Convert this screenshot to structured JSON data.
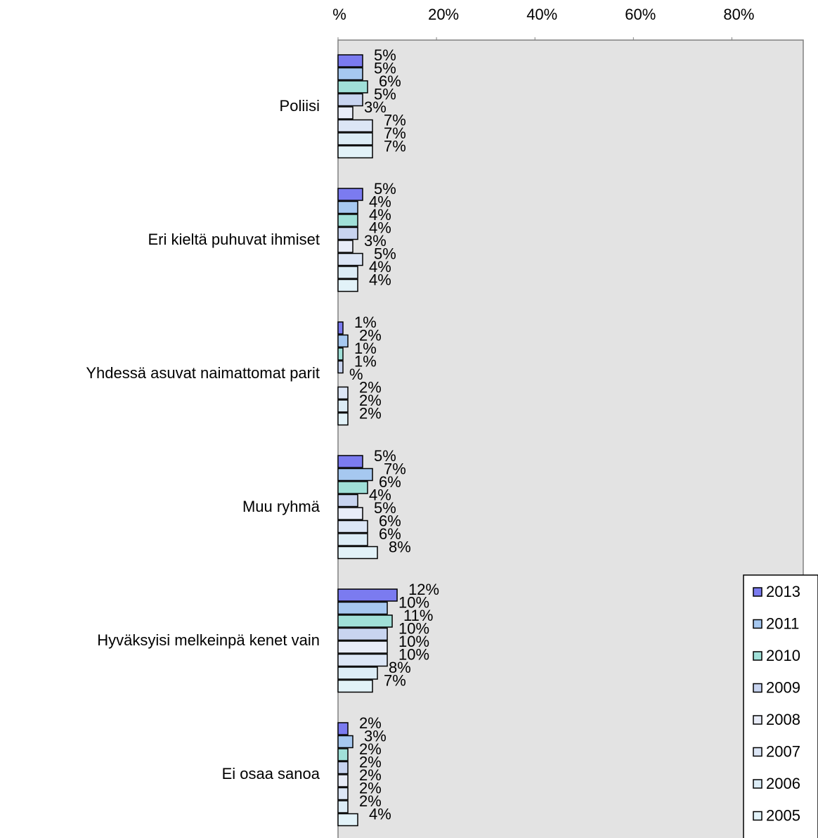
{
  "chart_data": {
    "type": "bar",
    "orientation": "horizontal",
    "categories": [
      "Poliisi",
      "Eri kieltä puhuvat ihmiset",
      "Yhdessä asuvat naimattomat parit",
      "Muu ryhmä",
      "Hyväksyisi melkeinpä kenet vain",
      "Ei osaa sanoa"
    ],
    "series": [
      {
        "name": "2013",
        "color": "#7b7bf0",
        "values": [
          5,
          5,
          1,
          5,
          12,
          2
        ],
        "value_labels": [
          "5%",
          "5%",
          "1%",
          "5%",
          "12%",
          "2%"
        ]
      },
      {
        "name": "2011",
        "color": "#a6c8f0",
        "values": [
          5,
          4,
          2,
          7,
          10,
          3
        ],
        "value_labels": [
          "5%",
          "4%",
          "2%",
          "7%",
          "10%",
          "3%"
        ]
      },
      {
        "name": "2010",
        "color": "#a0e0d8",
        "values": [
          6,
          4,
          1,
          6,
          11,
          2
        ],
        "value_labels": [
          "6%",
          "4%",
          "1%",
          "6%",
          "11%",
          "2%"
        ]
      },
      {
        "name": "2009",
        "color": "#c8d4f0",
        "values": [
          5,
          4,
          1,
          4,
          10,
          2
        ],
        "value_labels": [
          "5%",
          "4%",
          "1%",
          "4%",
          "10%",
          "2%"
        ]
      },
      {
        "name": "2008",
        "color": "#e8ecf8",
        "values": [
          3,
          3,
          0,
          5,
          10,
          2
        ],
        "value_labels": [
          "3%",
          "3%",
          "%",
          "5%",
          "10%",
          "2%"
        ]
      },
      {
        "name": "2007",
        "color": "#dce6f6",
        "values": [
          7,
          5,
          2,
          6,
          10,
          2
        ],
        "value_labels": [
          "7%",
          "5%",
          "2%",
          "6%",
          "10%",
          "2%"
        ]
      },
      {
        "name": "2006",
        "color": "#dcecf6",
        "values": [
          7,
          4,
          2,
          6,
          8,
          2
        ],
        "value_labels": [
          "7%",
          "4%",
          "2%",
          "6%",
          "8%",
          "2%"
        ]
      },
      {
        "name": "2005",
        "color": "#e2f2f8",
        "values": [
          7,
          4,
          2,
          8,
          7,
          4
        ],
        "value_labels": [
          "7%",
          "4%",
          "2%",
          "8%",
          "7%",
          "4%"
        ]
      }
    ],
    "xlim": [
      0,
      94.5
    ],
    "xticks": [
      {
        "value": 0,
        "label": "%"
      },
      {
        "value": 20,
        "label": "20%"
      },
      {
        "value": 40,
        "label": "40%"
      },
      {
        "value": 60,
        "label": "60%"
      },
      {
        "value": 80,
        "label": "80%"
      }
    ],
    "legend": "bottom-right"
  }
}
